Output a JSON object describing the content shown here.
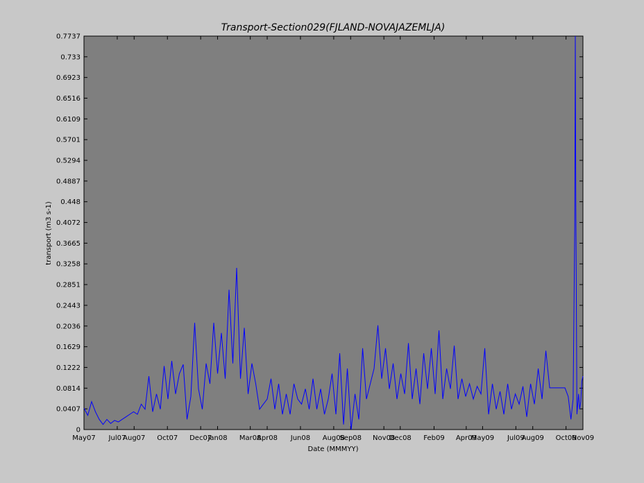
{
  "chart_data": {
    "type": "line",
    "title": "Transport-Section029(FJLAND-NOVAJAZEMLJA)",
    "xlabel": "Date (MMMYY)",
    "ylabel": "transport (m3 s-1)",
    "x_range": [
      "2007-05-01",
      "2009-11-01"
    ],
    "ylim": [
      0,
      0.7737
    ],
    "grid": false,
    "colors": {
      "plot_bg": "#7f7f7f",
      "series": "#0000ff",
      "figure_bg": "#c8c8c8"
    },
    "y_ticks": [
      "0",
      "0.0407",
      "0.0814",
      "0.1222",
      "0.1629",
      "0.2036",
      "0.2443",
      "0.2851",
      "0.3258",
      "0.3665",
      "0.4072",
      "0.448",
      "0.4887",
      "0.5294",
      "0.5701",
      "0.6109",
      "0.6516",
      "0.6923",
      "0.733",
      "0.7737"
    ],
    "x_ticks": [
      {
        "label": "May07",
        "date": "2007-05-01"
      },
      {
        "label": "Jul07",
        "date": "2007-07-01"
      },
      {
        "label": "Aug07",
        "date": "2007-08-01"
      },
      {
        "label": "Oct07",
        "date": "2007-10-01"
      },
      {
        "label": "Dec07",
        "date": "2007-12-01"
      },
      {
        "label": "Jan08",
        "date": "2008-01-01"
      },
      {
        "label": "Mar08",
        "date": "2008-03-01"
      },
      {
        "label": "Apr08",
        "date": "2008-04-01"
      },
      {
        "label": "Jun08",
        "date": "2008-06-01"
      },
      {
        "label": "Aug08",
        "date": "2008-08-01"
      },
      {
        "label": "Sep08",
        "date": "2008-09-01"
      },
      {
        "label": "Nov08",
        "date": "2008-11-01"
      },
      {
        "label": "Dec08",
        "date": "2008-12-01"
      },
      {
        "label": "Feb09",
        "date": "2009-02-01"
      },
      {
        "label": "Apr09",
        "date": "2009-04-01"
      },
      {
        "label": "May09",
        "date": "2009-05-01"
      },
      {
        "label": "Jul09",
        "date": "2009-07-01"
      },
      {
        "label": "Aug09",
        "date": "2009-08-01"
      },
      {
        "label": "Oct09",
        "date": "2009-10-01"
      },
      {
        "label": "Nov09",
        "date": "2009-11-01"
      }
    ],
    "series": [
      {
        "points": [
          [
            "2007-05-01",
            0.042
          ],
          [
            "2007-05-08",
            0.028
          ],
          [
            "2007-05-15",
            0.055
          ],
          [
            "2007-05-22",
            0.035
          ],
          [
            "2007-05-29",
            0.02
          ],
          [
            "2007-06-05",
            0.01
          ],
          [
            "2007-06-12",
            0.02
          ],
          [
            "2007-06-19",
            0.012
          ],
          [
            "2007-06-26",
            0.018
          ],
          [
            "2007-07-03",
            0.015
          ],
          [
            "2007-07-10",
            0.02
          ],
          [
            "2007-07-17",
            0.025
          ],
          [
            "2007-07-24",
            0.03
          ],
          [
            "2007-07-31",
            0.035
          ],
          [
            "2007-08-07",
            0.03
          ],
          [
            "2007-08-14",
            0.05
          ],
          [
            "2007-08-21",
            0.04
          ],
          [
            "2007-08-28",
            0.105
          ],
          [
            "2007-09-04",
            0.035
          ],
          [
            "2007-09-11",
            0.07
          ],
          [
            "2007-09-18",
            0.04
          ],
          [
            "2007-09-25",
            0.125
          ],
          [
            "2007-10-02",
            0.06
          ],
          [
            "2007-10-09",
            0.135
          ],
          [
            "2007-10-16",
            0.07
          ],
          [
            "2007-10-23",
            0.11
          ],
          [
            "2007-10-30",
            0.128
          ],
          [
            "2007-11-06",
            0.02
          ],
          [
            "2007-11-13",
            0.065
          ],
          [
            "2007-11-20",
            0.21
          ],
          [
            "2007-11-27",
            0.08
          ],
          [
            "2007-12-04",
            0.04
          ],
          [
            "2007-12-11",
            0.13
          ],
          [
            "2007-12-18",
            0.09
          ],
          [
            "2007-12-25",
            0.21
          ],
          [
            "2008-01-01",
            0.11
          ],
          [
            "2008-01-08",
            0.19
          ],
          [
            "2008-01-15",
            0.1
          ],
          [
            "2008-01-22",
            0.275
          ],
          [
            "2008-01-29",
            0.13
          ],
          [
            "2008-02-05",
            0.318
          ],
          [
            "2008-02-12",
            0.1
          ],
          [
            "2008-02-19",
            0.2
          ],
          [
            "2008-02-26",
            0.07
          ],
          [
            "2008-03-04",
            0.13
          ],
          [
            "2008-03-11",
            0.09
          ],
          [
            "2008-03-18",
            0.04
          ],
          [
            "2008-03-25",
            0.05
          ],
          [
            "2008-04-01",
            0.06
          ],
          [
            "2008-04-08",
            0.1
          ],
          [
            "2008-04-15",
            0.04
          ],
          [
            "2008-04-22",
            0.09
          ],
          [
            "2008-04-29",
            0.03
          ],
          [
            "2008-05-06",
            0.07
          ],
          [
            "2008-05-13",
            0.03
          ],
          [
            "2008-05-20",
            0.09
          ],
          [
            "2008-05-27",
            0.06
          ],
          [
            "2008-06-03",
            0.05
          ],
          [
            "2008-06-10",
            0.08
          ],
          [
            "2008-06-17",
            0.04
          ],
          [
            "2008-06-24",
            0.1
          ],
          [
            "2008-07-01",
            0.04
          ],
          [
            "2008-07-08",
            0.08
          ],
          [
            "2008-07-15",
            0.03
          ],
          [
            "2008-07-22",
            0.06
          ],
          [
            "2008-07-29",
            0.11
          ],
          [
            "2008-08-05",
            0.03
          ],
          [
            "2008-08-12",
            0.15
          ],
          [
            "2008-08-19",
            0.01
          ],
          [
            "2008-08-26",
            0.12
          ],
          [
            "2008-09-02",
            0.0
          ],
          [
            "2008-09-09",
            0.07
          ],
          [
            "2008-09-16",
            0.02
          ],
          [
            "2008-09-23",
            0.16
          ],
          [
            "2008-09-30",
            0.06
          ],
          [
            "2008-10-07",
            0.09
          ],
          [
            "2008-10-14",
            0.12
          ],
          [
            "2008-10-21",
            0.205
          ],
          [
            "2008-10-28",
            0.1
          ],
          [
            "2008-11-04",
            0.16
          ],
          [
            "2008-11-11",
            0.08
          ],
          [
            "2008-11-18",
            0.13
          ],
          [
            "2008-11-25",
            0.06
          ],
          [
            "2008-12-02",
            0.11
          ],
          [
            "2008-12-09",
            0.07
          ],
          [
            "2008-12-16",
            0.17
          ],
          [
            "2008-12-23",
            0.06
          ],
          [
            "2008-12-30",
            0.12
          ],
          [
            "2009-01-06",
            0.05
          ],
          [
            "2009-01-13",
            0.15
          ],
          [
            "2009-01-20",
            0.08
          ],
          [
            "2009-01-27",
            0.16
          ],
          [
            "2009-02-03",
            0.07
          ],
          [
            "2009-02-10",
            0.195
          ],
          [
            "2009-02-17",
            0.06
          ],
          [
            "2009-02-24",
            0.12
          ],
          [
            "2009-03-03",
            0.08
          ],
          [
            "2009-03-10",
            0.165
          ],
          [
            "2009-03-17",
            0.06
          ],
          [
            "2009-03-24",
            0.1
          ],
          [
            "2009-03-31",
            0.065
          ],
          [
            "2009-04-07",
            0.09
          ],
          [
            "2009-04-14",
            0.06
          ],
          [
            "2009-04-21",
            0.085
          ],
          [
            "2009-04-28",
            0.07
          ],
          [
            "2009-05-05",
            0.16
          ],
          [
            "2009-05-12",
            0.03
          ],
          [
            "2009-05-19",
            0.09
          ],
          [
            "2009-05-26",
            0.04
          ],
          [
            "2009-06-02",
            0.075
          ],
          [
            "2009-06-09",
            0.03
          ],
          [
            "2009-06-16",
            0.09
          ],
          [
            "2009-06-23",
            0.04
          ],
          [
            "2009-06-30",
            0.07
          ],
          [
            "2009-07-07",
            0.05
          ],
          [
            "2009-07-14",
            0.085
          ],
          [
            "2009-07-21",
            0.025
          ],
          [
            "2009-07-28",
            0.09
          ],
          [
            "2009-08-04",
            0.05
          ],
          [
            "2009-08-11",
            0.12
          ],
          [
            "2009-08-18",
            0.06
          ],
          [
            "2009-08-25",
            0.155
          ],
          [
            "2009-09-01",
            0.082
          ],
          [
            "2009-09-15",
            0.082
          ],
          [
            "2009-09-29",
            0.082
          ],
          [
            "2009-10-05",
            0.065
          ],
          [
            "2009-10-10",
            0.02
          ],
          [
            "2009-10-14",
            0.06
          ],
          [
            "2009-10-17",
            0.4
          ],
          [
            "2009-10-18",
            0.7737
          ],
          [
            "2009-10-19",
            0.445
          ],
          [
            "2009-10-21",
            0.03
          ],
          [
            "2009-10-24",
            0.07
          ],
          [
            "2009-10-26",
            0.04
          ],
          [
            "2009-10-28",
            0.055
          ],
          [
            "2009-10-30",
            0.095
          ],
          [
            "2009-11-01",
            0.105
          ]
        ]
      }
    ]
  }
}
